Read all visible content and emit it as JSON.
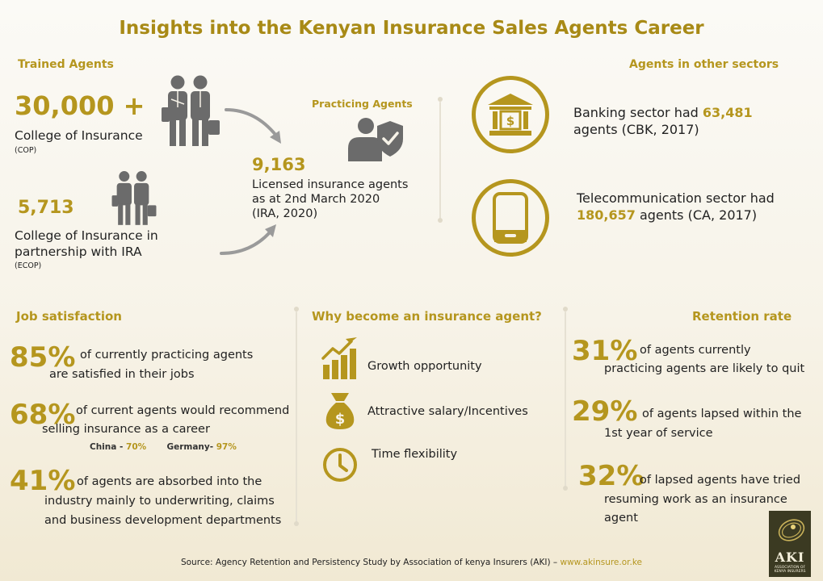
{
  "title": "Insights into the Kenyan Insurance Sales Agents Career",
  "trained": {
    "heading": "Trained Agents",
    "cop_number": "30,000 +",
    "cop_label": "College of Insurance",
    "cop_abbr": "(COP)",
    "ecop_number": "5,713",
    "ecop_label_line1": "College of Insurance in",
    "ecop_label_line2": "partnership with IRA",
    "ecop_abbr": "(ECOP)"
  },
  "practicing": {
    "heading": "Practicing Agents",
    "number": "9,163",
    "line1": "Licensed insurance agents",
    "line2": "as at 2nd March 2020",
    "line3": "(IRA, 2020)"
  },
  "other_sectors": {
    "heading": "Agents in other sectors",
    "banking_pre": "Banking sector had ",
    "banking_number": "63,481",
    "banking_post": "agents (CBK, 2017)",
    "telecom_pre": "Telecommunication sector had",
    "telecom_number": "180,657",
    "telecom_post": " agents (CA, 2017)"
  },
  "job_satisfaction": {
    "heading": "Job satisfaction",
    "item1_pct": "85%",
    "item1_line1": "of currently practicing agents",
    "item1_line2": "are satisfied in their jobs",
    "item2_pct": "68%",
    "item2_line1": "of current agents would recommend",
    "item2_line2": "selling insurance as a career",
    "china_label": "China - ",
    "china_value": "70%",
    "germany_label": "Germany- ",
    "germany_value": "97%",
    "item3_pct": "41%",
    "item3_line1": "of agents are absorbed into the",
    "item3_line2": "industry mainly  to underwriting, claims",
    "item3_line3": "and business development departments"
  },
  "why": {
    "heading": "Why become an insurance agent?",
    "reasons": [
      "Growth opportunity",
      "Attractive salary/Incentives",
      "Time flexibility"
    ]
  },
  "retention": {
    "heading": "Retention rate",
    "item1_pct": "31%",
    "item1_line1": "of agents currently",
    "item1_line2": "practicing agents are likely to quit",
    "item2_pct": "29%",
    "item2_line1": "of agents lapsed within the",
    "item2_line2": "1st year of service",
    "item3_pct": "32%",
    "item3_line1": "of lapsed agents have tried",
    "item3_line2": "resuming work as an insurance",
    "item3_line3": "agent"
  },
  "footer": {
    "source": "Source: Agency Retention and Persistency Study by Association of kenya Insurers (AKI) – ",
    "link": "www.akinsure.or.ke"
  },
  "logo": {
    "text": "AKI",
    "subtext": "ASSOCIATION OF KENYA INSURERS"
  },
  "colors": {
    "accent": "#b5961e",
    "icon_gray": "#6b6b6b"
  }
}
